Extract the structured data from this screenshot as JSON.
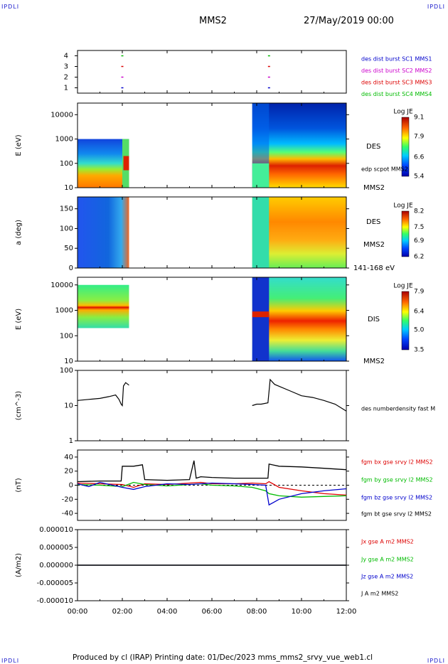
{
  "header": {
    "corner_label": "IPDLI",
    "title": "MMS2",
    "datetime": "27/May/2019 00:00"
  },
  "footer": {
    "text": "Produced by cl (IRAP)   Printing date: 01/Dec/2023   mms_mms2_srvy_vue_web1.cl"
  },
  "colors": {
    "mms1": "#0000cc",
    "mms2": "#cc00cc",
    "mms3": "#dd0000",
    "mms4": "#00bb00",
    "bx": "#dd0000",
    "by": "#00bb00",
    "bz": "#0000cc",
    "bt": "#000000"
  },
  "chart_data": [
    {
      "type": "scatter",
      "id": "burst_availability",
      "ylim": [
        0.5,
        4.5
      ],
      "yticks": [
        "1",
        "2",
        "3",
        "4"
      ],
      "series": [
        {
          "name": "des dist burst SC1 MMS1",
          "color": "#0000cc",
          "x": [
            2.0,
            8.55
          ],
          "y": [
            1,
            1
          ]
        },
        {
          "name": "des dist burst SC2 MMS2",
          "color": "#cc00cc",
          "x": [
            2.0,
            8.55
          ],
          "y": [
            2,
            2
          ]
        },
        {
          "name": "des dist burst SC3 MMS3",
          "color": "#dd0000",
          "x": [
            2.0,
            8.55
          ],
          "y": [
            3,
            3
          ]
        },
        {
          "name": "des dist burst SC4 MMS4",
          "color": "#00bb00",
          "x": [
            2.0,
            8.55
          ],
          "y": [
            4,
            4
          ]
        }
      ]
    },
    {
      "type": "heatmap",
      "id": "des_energy",
      "ylabel": "E (eV)",
      "yscale": "log",
      "ylim": [
        10,
        30000
      ],
      "yticks": [
        "10",
        "100",
        "1000",
        "10000"
      ],
      "labels": [
        "DES",
        "edp scpot MMS2",
        "MMS2"
      ],
      "colorbar": {
        "title": "Log JE",
        "min": 5.4,
        "max": 9.1,
        "ticks": [
          "9.1",
          "7.9",
          "6.6",
          "5.4"
        ]
      },
      "coverage_hours": [
        [
          0.0,
          2.3
        ],
        [
          7.8,
          12.0
        ]
      ]
    },
    {
      "type": "heatmap",
      "id": "des_pitch_angle",
      "ylabel": "a (deg)",
      "ylim": [
        0,
        180
      ],
      "yticks": [
        "0",
        "50",
        "100",
        "150"
      ],
      "labels": [
        "DES",
        "MMS2",
        "141-168 eV"
      ],
      "colorbar": {
        "title": "Log JE",
        "min": 6.2,
        "max": 8.2,
        "ticks": [
          "8.2",
          "7.5",
          "6.9",
          "6.2"
        ]
      },
      "coverage_hours": [
        [
          0.0,
          2.3
        ],
        [
          7.8,
          12.0
        ]
      ]
    },
    {
      "type": "heatmap",
      "id": "dis_energy",
      "ylabel": "E (eV)",
      "yscale": "log",
      "ylim": [
        10,
        20000
      ],
      "yticks": [
        "10",
        "100",
        "1000",
        "10000"
      ],
      "labels": [
        "DIS",
        "MMS2"
      ],
      "colorbar": {
        "title": "Log JE",
        "min": 3.5,
        "max": 7.9,
        "ticks": [
          "7.9",
          "6.4",
          "5.0",
          "3.5"
        ]
      },
      "coverage_hours": [
        [
          0.0,
          2.3
        ],
        [
          7.8,
          12.0
        ]
      ]
    },
    {
      "type": "line",
      "id": "des_density",
      "ylabel": "(cm^-3)",
      "yscale": "log",
      "ylim": [
        1,
        100
      ],
      "yticks": [
        "1",
        "10",
        "100"
      ],
      "series": [
        {
          "name": "des numberdensity fast M",
          "color": "#000000",
          "segments": [
            {
              "x": [
                0.0,
                0.5,
                1.0,
                1.4,
                1.7,
                1.85,
                1.95,
                2.0,
                2.05,
                2.15,
                2.3
              ],
              "y": [
                14,
                15,
                16,
                18,
                20,
                15,
                11,
                10,
                36,
                45,
                38
              ]
            },
            {
              "x": [
                7.8,
                8.0,
                8.2,
                8.5,
                8.6,
                8.8,
                9.5,
                10.0,
                10.5,
                11.0,
                11.5,
                12.0
              ],
              "y": [
                10,
                11,
                11,
                12,
                55,
                40,
                26,
                19,
                17,
                14,
                11,
                7
              ]
            }
          ]
        }
      ]
    },
    {
      "type": "line",
      "id": "fgm_b",
      "ylabel": "(nT)",
      "ylim": [
        -50,
        50
      ],
      "yticks": [
        "-40",
        "-20",
        "0",
        "20",
        "40"
      ],
      "reference_line": 0,
      "series": [
        {
          "name": "fgm bx gse srvy l2 MMS2",
          "color": "#dd0000",
          "x": [
            0,
            1,
            2,
            2.5,
            3,
            4,
            5,
            5.5,
            6,
            7,
            7.8,
            8.4,
            8.55,
            9,
            10,
            11,
            12
          ],
          "y": [
            3,
            2,
            1,
            -3,
            2,
            1,
            3,
            4,
            2,
            2,
            3,
            2,
            5,
            -3,
            -8,
            -12,
            -14
          ]
        },
        {
          "name": "fgm by gse srvy l2 MMS2",
          "color": "#00bb00",
          "x": [
            0,
            1,
            2,
            2.5,
            3,
            4,
            5,
            5.5,
            6,
            7,
            7.8,
            8.4,
            8.55,
            9,
            10,
            11,
            12
          ],
          "y": [
            1,
            0,
            -2,
            4,
            1,
            -1,
            1,
            2,
            0,
            -1,
            -3,
            -8,
            -12,
            -15,
            -17,
            -16,
            -15
          ]
        },
        {
          "name": "fgm bz gse srvy l2 MMS2",
          "color": "#0000cc",
          "x": [
            0,
            0.5,
            1,
            2,
            2.5,
            3,
            4,
            5,
            6,
            7,
            7.8,
            8.4,
            8.55,
            9,
            10,
            11,
            12
          ],
          "y": [
            2,
            -2,
            4,
            -3,
            -6,
            -2,
            2,
            1,
            3,
            2,
            1,
            0,
            -28,
            -20,
            -12,
            -8,
            -5
          ]
        },
        {
          "name": "fgm bt gse srvy l2 MMS2",
          "color": "#000000",
          "x": [
            0,
            1,
            1.95,
            2.0,
            2.5,
            2.9,
            3.0,
            4,
            5,
            5.2,
            5.3,
            5.5,
            6,
            7,
            7.8,
            8.5,
            8.55,
            9,
            10,
            11,
            12
          ],
          "y": [
            5,
            6,
            6,
            27,
            27,
            29,
            8,
            7,
            8,
            35,
            10,
            12,
            11,
            10,
            10,
            10,
            30,
            27,
            26,
            24,
            22
          ]
        }
      ]
    },
    {
      "type": "line",
      "id": "current_density",
      "ylabel": "(A/m2)",
      "ylim": [
        -1e-05,
        1e-05
      ],
      "yticks": [
        "-0.000010",
        "-0.000005",
        "0.000000",
        "0.000005",
        "0.000010"
      ],
      "series": [
        {
          "name": "Jx gse A m2 MMS2",
          "color": "#dd0000",
          "x": [
            0,
            12
          ],
          "y": [
            0,
            0
          ]
        },
        {
          "name": "Jy gse A m2 MMS2",
          "color": "#00bb00",
          "x": [
            0,
            12
          ],
          "y": [
            0,
            0
          ]
        },
        {
          "name": "Jz gse A m2 MMS2",
          "color": "#0000cc",
          "x": [
            0,
            12
          ],
          "y": [
            0,
            0
          ]
        },
        {
          "name": "J A m2 MMS2",
          "color": "#000000",
          "x": [
            0,
            12
          ],
          "y": [
            0,
            0
          ]
        }
      ]
    }
  ],
  "time_axis": {
    "range_hours": [
      0,
      12
    ],
    "ticks": [
      "00:00",
      "02:00",
      "04:00",
      "06:00",
      "08:00",
      "10:00",
      "12:00"
    ]
  }
}
